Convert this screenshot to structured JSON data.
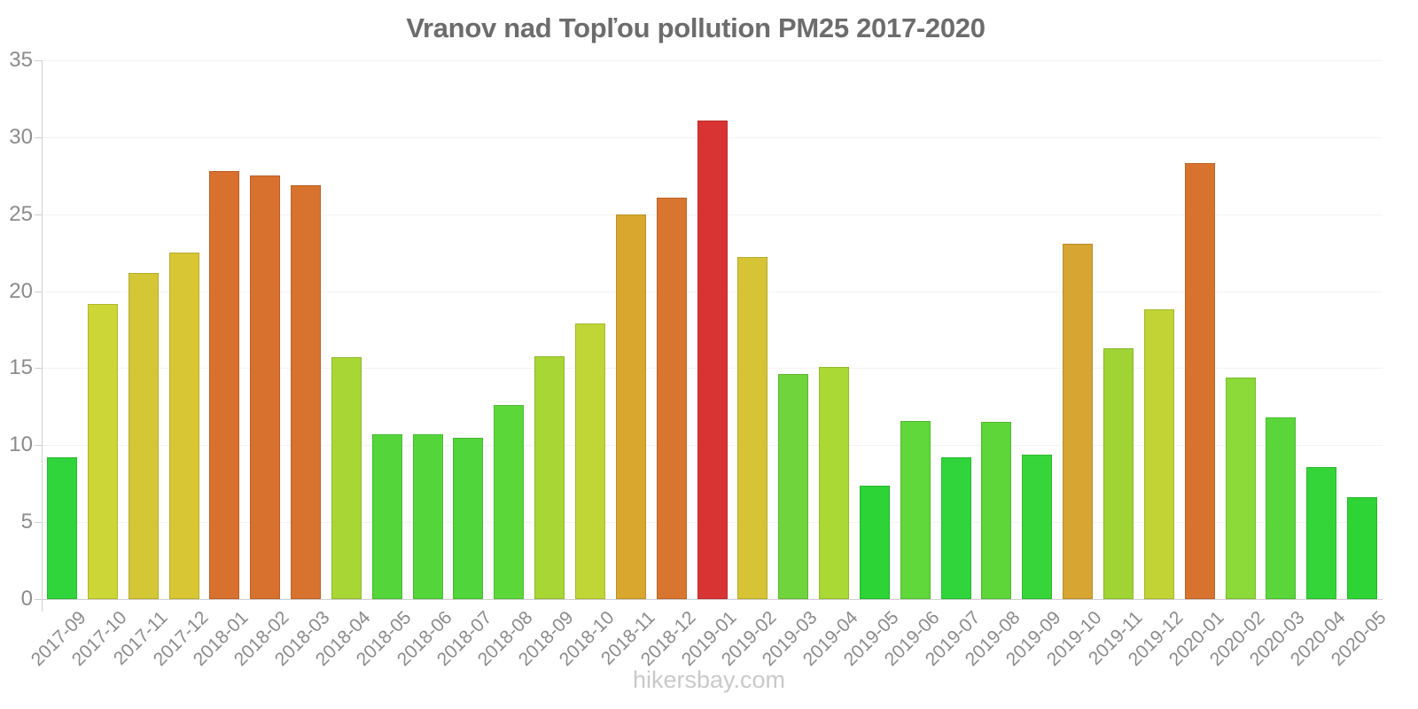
{
  "page": {
    "title": "Vranov nad Topľou pollution PM25 2017-2020",
    "watermark": "hikersbay.com"
  },
  "chart_data": {
    "type": "bar",
    "title": "Vranov nad Topľou pollution PM25 2017-2020",
    "categories": [
      "2017-09",
      "2017-10",
      "2017-11",
      "2017-12",
      "2018-01",
      "2018-02",
      "2018-03",
      "2018-04",
      "2018-05",
      "2018-06",
      "2018-07",
      "2018-08",
      "2018-09",
      "2018-10",
      "2018-11",
      "2018-12",
      "2019-01",
      "2019-02",
      "2019-03",
      "2019-04",
      "2019-05",
      "2019-06",
      "2019-07",
      "2019-08",
      "2019-09",
      "2019-10",
      "2019-11",
      "2019-12",
      "2020-01",
      "2020-02",
      "2020-03",
      "2020-04",
      "2020-05"
    ],
    "values": [
      9.2,
      19.2,
      21.2,
      22.5,
      27.8,
      27.5,
      26.9,
      15.7,
      10.7,
      10.7,
      10.5,
      12.6,
      15.8,
      17.9,
      25.0,
      26.1,
      31.1,
      22.2,
      14.6,
      15.1,
      7.4,
      11.6,
      9.2,
      11.5,
      9.4,
      23.1,
      16.3,
      18.8,
      28.3,
      14.4,
      11.8,
      8.6,
      6.6
    ],
    "bar_colors": [
      "#30d53c",
      "#cdd637",
      "#d4c736",
      "#d8c634",
      "#d8702e",
      "#d8702e",
      "#d8722f",
      "#a8d634",
      "#54d63a",
      "#54d63a",
      "#50d53a",
      "#5cd73a",
      "#a8d634",
      "#c0d636",
      "#d9a72e",
      "#d8752f",
      "#d93434",
      "#d6c436",
      "#70d43c",
      "#aad834",
      "#2cd436",
      "#60d73a",
      "#30d53c",
      "#5ed63a",
      "#38d53a",
      "#d6a532",
      "#a0d435",
      "#c2d435",
      "#d8732f",
      "#8cd93a",
      "#5ad63a",
      "#33d538",
      "#2ed336"
    ],
    "xlabel": "",
    "ylabel": "",
    "ylim": [
      0,
      35
    ],
    "yticks": [
      0,
      5,
      10,
      15,
      20,
      25,
      30,
      35
    ],
    "grid": true,
    "legend": false,
    "axis_color": "#cfcfcf",
    "grid_color": "#f3f3f3",
    "tick_label_color": "#8b8b8b",
    "title_color": "#6c6c6c",
    "watermark_color": "#c9c9c9"
  }
}
